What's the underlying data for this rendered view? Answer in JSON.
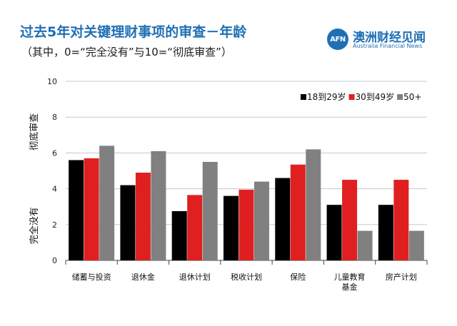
{
  "header": {
    "title": "过去5年对关键理财事项的审查－年龄",
    "subtitle": "（其中，0=“完全没有”与10=“彻底审查”）"
  },
  "logo": {
    "mark": "AFN",
    "name_cn": "澳洲财经见闻",
    "name_en": "Australia Financial News",
    "color": "#1f6fb5"
  },
  "chart_data": {
    "type": "bar",
    "categories": [
      "储蓄与投资",
      "退休金",
      "退休计划",
      "税收计划",
      "保险",
      "儿童教育基金",
      "房产计划"
    ],
    "category_lines": [
      [
        "储蓄与投资"
      ],
      [
        "退休金"
      ],
      [
        "退休计划"
      ],
      [
        "税收计划"
      ],
      [
        "保险"
      ],
      [
        "儿童教育",
        "基金"
      ],
      [
        "房产计划"
      ]
    ],
    "series": [
      {
        "name": "18到29岁",
        "color": "#000000",
        "values": [
          5.6,
          4.2,
          2.75,
          3.6,
          4.6,
          3.1,
          3.1
        ]
      },
      {
        "name": "30到49岁",
        "color": "#e02020",
        "values": [
          5.7,
          4.9,
          3.65,
          3.95,
          5.35,
          4.5,
          4.5
        ]
      },
      {
        "name": "50+",
        "color": "#808080",
        "values": [
          6.4,
          6.1,
          5.5,
          4.4,
          6.2,
          1.65,
          1.65
        ]
      }
    ],
    "ylim": [
      0,
      10
    ],
    "yticks": [
      0,
      2,
      4,
      6,
      8,
      10
    ],
    "ylabel_top": "彻底审查",
    "ylabel_bottom": "完全没有",
    "grid": true,
    "legend": "top-right"
  }
}
